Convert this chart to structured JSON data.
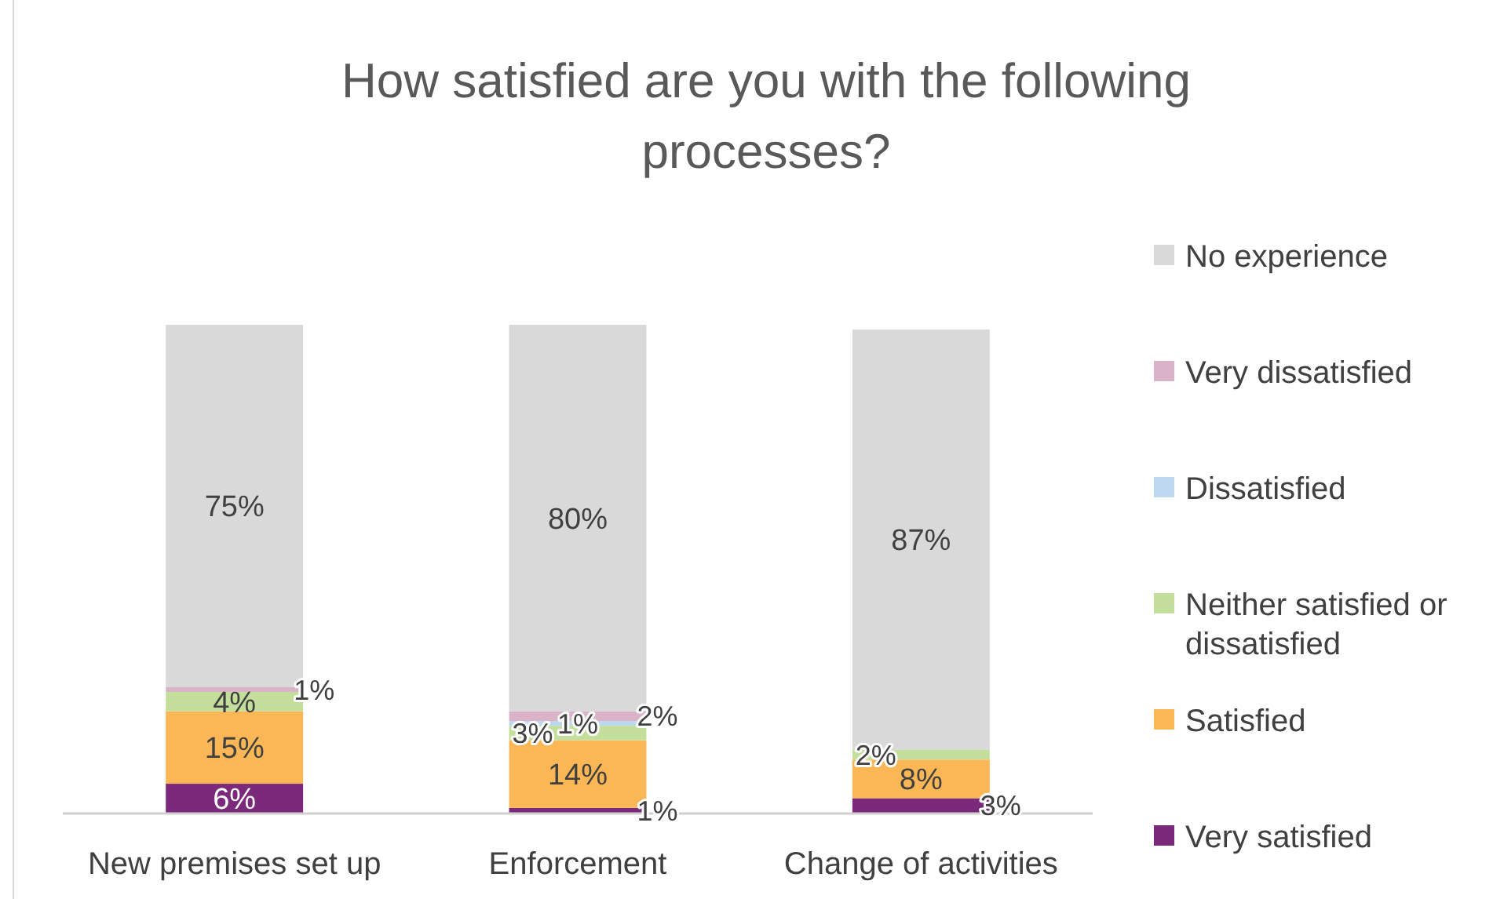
{
  "chart_data": {
    "type": "bar",
    "stacked": true,
    "title": "How satisfied are you with the following processes?",
    "categories": [
      "New premises set up",
      "Enforcement",
      "Change of activities"
    ],
    "legend": "right",
    "series": [
      {
        "name": "Very satisfied",
        "color": "#7b2a7b",
        "values": [
          6,
          1,
          3
        ],
        "value_labels": [
          "6%",
          "1%",
          "3%"
        ]
      },
      {
        "name": "Satisfied",
        "color": "#fbb755",
        "values": [
          15,
          14,
          8
        ],
        "value_labels": [
          "15%",
          "14%",
          "8%"
        ]
      },
      {
        "name": "Neither satisfied or dissatisfied",
        "color": "#c4df9c",
        "values": [
          4,
          3,
          2
        ],
        "value_labels": [
          "4%",
          "3%",
          "2%"
        ]
      },
      {
        "name": "Dissatisfied",
        "color": "#bdd7ee",
        "values": [
          0,
          1,
          0
        ],
        "value_labels": [
          null,
          "1%",
          null
        ]
      },
      {
        "name": "Very dissatisfied",
        "color": "#dbb3c8",
        "values": [
          1,
          2,
          0
        ],
        "value_labels": [
          "1%",
          "2%",
          null
        ]
      },
      {
        "name": "No experience",
        "color": "#d9d9d9",
        "values": [
          75,
          80,
          87
        ],
        "value_labels": [
          "75%",
          "80%",
          "87%"
        ]
      }
    ]
  }
}
